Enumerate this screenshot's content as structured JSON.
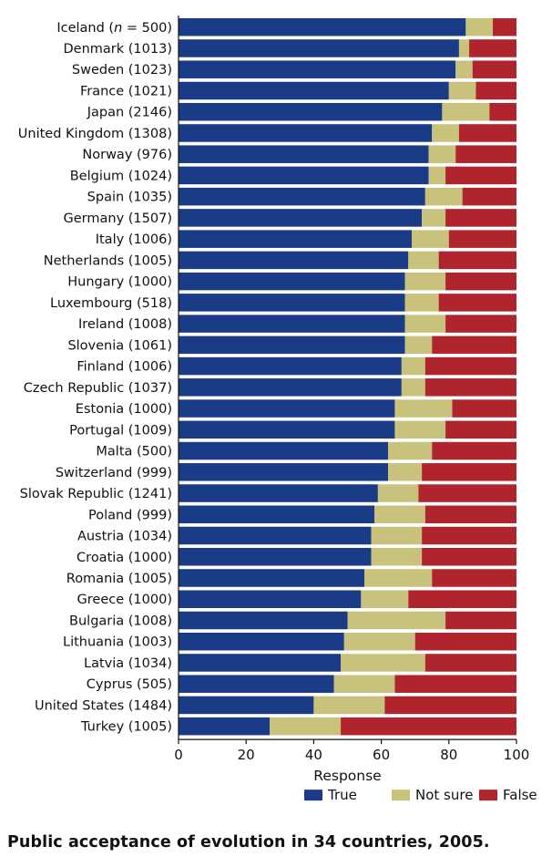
{
  "caption": "Public acceptance of evolution in 34 countries, 2005.",
  "chart_data": {
    "type": "bar",
    "orientation": "horizontal",
    "stacked": true,
    "categories": [
      "Iceland (n = 500)",
      "Denmark (1013)",
      "Sweden (1023)",
      "France (1021)",
      "Japan (2146)",
      "United Kingdom (1308)",
      "Norway (976)",
      "Belgium (1024)",
      "Spain (1035)",
      "Germany (1507)",
      "Italy (1006)",
      "Netherlands (1005)",
      "Hungary (1000)",
      "Luxembourg (518)",
      "Ireland (1008)",
      "Slovenia (1061)",
      "Finland (1006)",
      "Czech Republic (1037)",
      "Estonia (1000)",
      "Portugal (1009)",
      "Malta (500)",
      "Switzerland (999)",
      "Slovak Republic (1241)",
      "Poland (999)",
      "Austria (1034)",
      "Croatia (1000)",
      "Romania (1005)",
      "Greece (1000)",
      "Bulgaria (1008)",
      "Lithuania (1003)",
      "Latvia (1034)",
      "Cyprus (505)",
      "United States (1484)",
      "Turkey (1005)"
    ],
    "series": [
      {
        "name": "True",
        "color": "#1a3b85",
        "values": [
          85,
          83,
          82,
          80,
          78,
          75,
          74,
          74,
          73,
          72,
          69,
          68,
          67,
          67,
          67,
          67,
          66,
          66,
          64,
          64,
          62,
          62,
          59,
          58,
          57,
          57,
          55,
          54,
          50,
          49,
          48,
          46,
          40,
          27
        ]
      },
      {
        "name": "Not sure",
        "color": "#c9c27c",
        "values": [
          8,
          3,
          5,
          8,
          14,
          8,
          8,
          5,
          11,
          7,
          11,
          9,
          12,
          10,
          12,
          8,
          7,
          7,
          17,
          15,
          13,
          10,
          12,
          15,
          15,
          15,
          20,
          14,
          29,
          21,
          25,
          18,
          21,
          21
        ]
      },
      {
        "name": "False",
        "color": "#b0242d",
        "values": [
          7,
          14,
          13,
          12,
          8,
          17,
          18,
          21,
          16,
          21,
          20,
          23,
          21,
          23,
          21,
          25,
          27,
          27,
          19,
          21,
          25,
          28,
          29,
          27,
          28,
          28,
          25,
          32,
          21,
          30,
          27,
          36,
          39,
          52
        ]
      }
    ],
    "xlabel": "Response",
    "ylabel": "",
    "xlim": [
      0,
      100
    ],
    "xticks": [
      0,
      20,
      40,
      60,
      80,
      100
    ],
    "legend_position": "bottom-right",
    "grid": false
  }
}
